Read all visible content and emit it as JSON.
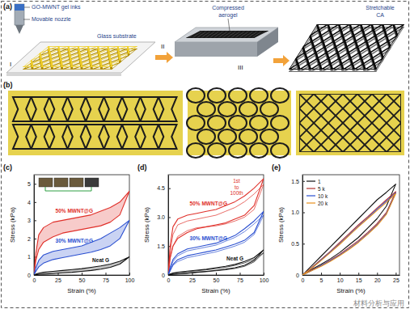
{
  "panel_labels": [
    "(a)",
    "(b)",
    "(c)",
    "(d)",
    "(e)"
  ],
  "schematic": {
    "labels": {
      "ink": "GO-MWNT gel inks",
      "nozzle": "Movable nozzle",
      "substrate": "Glass substrate",
      "compressed": [
        "Compressed",
        "aerogel"
      ],
      "stretchable": [
        "Stretchable",
        "CA"
      ]
    },
    "steps": [
      "I",
      "II",
      "III"
    ]
  },
  "chart_data": [
    {
      "type": "line",
      "x_label": "Strain (%)",
      "y_label": "Stress (kPa)",
      "x": [
        0,
        2,
        5,
        10,
        20,
        30,
        40,
        50,
        60,
        70,
        80,
        90,
        100,
        90,
        80,
        70,
        60,
        50,
        40,
        30,
        20,
        10,
        5,
        2,
        0
      ],
      "xlim": [
        0,
        100
      ],
      "xticks": [
        0,
        25,
        50,
        75,
        100
      ],
      "ylim": [
        0,
        5.5
      ],
      "yticks": [
        0,
        1,
        2,
        3,
        4,
        5
      ],
      "series": [
        {
          "name": "50% MWNT@G",
          "color": "#e0302a",
          "values": [
            0,
            1.2,
            2.2,
            2.6,
            2.9,
            3.0,
            3.1,
            3.2,
            3.3,
            3.5,
            3.7,
            4.0,
            4.6,
            3.3,
            2.9,
            2.7,
            2.6,
            2.5,
            2.4,
            2.3,
            2.1,
            1.8,
            1.4,
            0.8,
            0
          ]
        },
        {
          "name": "30% MWNT@G",
          "color": "#2a4fd0",
          "values": [
            0,
            0.4,
            0.8,
            1.1,
            1.3,
            1.4,
            1.5,
            1.6,
            1.8,
            2.0,
            2.3,
            2.6,
            3.0,
            2.0,
            1.6,
            1.4,
            1.25,
            1.15,
            1.05,
            0.95,
            0.85,
            0.65,
            0.45,
            0.2,
            0
          ]
        },
        {
          "name": "Neat G",
          "color": "#111111",
          "values": [
            0,
            0.05,
            0.1,
            0.15,
            0.2,
            0.25,
            0.3,
            0.35,
            0.42,
            0.5,
            0.6,
            0.75,
            1.0,
            0.6,
            0.42,
            0.32,
            0.25,
            0.2,
            0.15,
            0.12,
            0.08,
            0.05,
            0.03,
            0.01,
            0
          ]
        }
      ]
    },
    {
      "type": "line",
      "x_label": "Strain (%)",
      "y_label": "Stress (kPa)",
      "x": [
        0,
        2,
        5,
        10,
        20,
        30,
        40,
        50,
        60,
        70,
        80,
        90,
        100,
        90,
        80,
        70,
        60,
        50,
        40,
        30,
        20,
        10,
        5,
        2,
        0
      ],
      "xlim": [
        0,
        100
      ],
      "xticks": [
        0,
        25,
        50,
        75,
        100
      ],
      "ylim": [
        0,
        5.2
      ],
      "yticks": [
        0,
        1.5,
        {
          "value": 3,
          "label": "3.0"
        },
        4.5
      ],
      "annotations": [
        "1st",
        "to",
        "100th"
      ],
      "series": [
        {
          "name": "50% MWNT@G",
          "color": "#e0302a",
          "values": [
            0,
            1.5,
            2.5,
            2.9,
            3.1,
            3.2,
            3.3,
            3.4,
            3.6,
            3.8,
            4.1,
            4.5,
            5.0,
            3.6,
            3.1,
            2.9,
            2.7,
            2.6,
            2.5,
            2.4,
            2.2,
            1.9,
            1.5,
            0.9,
            0
          ]
        },
        {
          "color": "#e0302a",
          "values": [
            0,
            1.2,
            2.1,
            2.6,
            2.8,
            2.9,
            3.0,
            3.1,
            3.3,
            3.5,
            3.8,
            4.2,
            4.7,
            3.4,
            3.0,
            2.8,
            2.65,
            2.55,
            2.5,
            2.45,
            2.3,
            2.0,
            1.5,
            0.85,
            0
          ]
        },
        {
          "name": "30% MWNT@G",
          "color": "#2a4fd0",
          "values": [
            0,
            0.4,
            0.8,
            1.1,
            1.35,
            1.45,
            1.55,
            1.65,
            1.85,
            2.05,
            2.4,
            2.8,
            3.3,
            2.2,
            1.8,
            1.6,
            1.45,
            1.3,
            1.2,
            1.1,
            1.0,
            0.8,
            0.55,
            0.25,
            0
          ]
        },
        {
          "color": "#2a4fd0",
          "values": [
            0,
            0.35,
            0.7,
            1.0,
            1.25,
            1.35,
            1.45,
            1.55,
            1.75,
            1.95,
            2.25,
            2.65,
            3.1,
            2.1,
            1.7,
            1.5,
            1.35,
            1.2,
            1.1,
            1.0,
            0.9,
            0.7,
            0.5,
            0.2,
            0
          ]
        },
        {
          "name": "Neat G",
          "color": "#111111",
          "values": [
            0,
            0.05,
            0.1,
            0.15,
            0.2,
            0.25,
            0.3,
            0.38,
            0.45,
            0.55,
            0.7,
            0.9,
            1.3,
            0.75,
            0.5,
            0.38,
            0.3,
            0.24,
            0.19,
            0.15,
            0.1,
            0.06,
            0.03,
            0.01,
            0
          ]
        },
        {
          "color": "#111111",
          "values": [
            0,
            0.04,
            0.08,
            0.12,
            0.17,
            0.22,
            0.27,
            0.33,
            0.4,
            0.5,
            0.63,
            0.82,
            1.15,
            0.68,
            0.45,
            0.34,
            0.27,
            0.22,
            0.17,
            0.13,
            0.09,
            0.05,
            0.03,
            0.01,
            0
          ]
        }
      ]
    },
    {
      "type": "line",
      "x_label": "Strain (%)",
      "y_label": "Stress (kPa)",
      "legend": "top-left",
      "x": [
        0,
        2.5,
        5,
        7.5,
        10,
        12.5,
        15,
        17.5,
        20,
        22.5,
        25,
        22.5,
        20,
        17.5,
        15,
        12.5,
        10,
        7.5,
        5,
        2.5,
        0
      ],
      "xlim": [
        0,
        26
      ],
      "xticks": [
        0,
        5,
        10,
        15,
        20,
        25
      ],
      "ylim": [
        0,
        1.6
      ],
      "yticks": [
        0,
        0.5,
        {
          "value": 1,
          "label": "1.0"
        },
        1.5
      ],
      "series": [
        {
          "name": "1",
          "color": "#111111",
          "values": [
            0,
            0.15,
            0.3,
            0.45,
            0.6,
            0.75,
            0.9,
            1.05,
            1.2,
            1.32,
            1.45,
            1.1,
            0.9,
            0.75,
            0.6,
            0.48,
            0.36,
            0.26,
            0.17,
            0.09,
            0
          ]
        },
        {
          "name": "5 k",
          "color": "#b5332e",
          "values": [
            0,
            0.12,
            0.25,
            0.38,
            0.52,
            0.66,
            0.8,
            0.93,
            1.07,
            1.2,
            1.33,
            1.0,
            0.82,
            0.68,
            0.55,
            0.44,
            0.33,
            0.24,
            0.15,
            0.08,
            0
          ]
        },
        {
          "name": "10 k",
          "color": "#2a4fd0",
          "values": [
            0,
            0.11,
            0.24,
            0.37,
            0.5,
            0.64,
            0.78,
            0.91,
            1.05,
            1.18,
            1.31,
            0.98,
            0.8,
            0.66,
            0.53,
            0.42,
            0.32,
            0.23,
            0.15,
            0.07,
            0
          ]
        },
        {
          "name": "20 k",
          "color": "#e8901c",
          "values": [
            0,
            0.11,
            0.23,
            0.36,
            0.49,
            0.63,
            0.77,
            0.9,
            1.03,
            1.16,
            1.3,
            0.97,
            0.79,
            0.65,
            0.52,
            0.41,
            0.31,
            0.22,
            0.14,
            0.07,
            0
          ]
        }
      ]
    }
  ],
  "watermark": "材料分析与应用"
}
